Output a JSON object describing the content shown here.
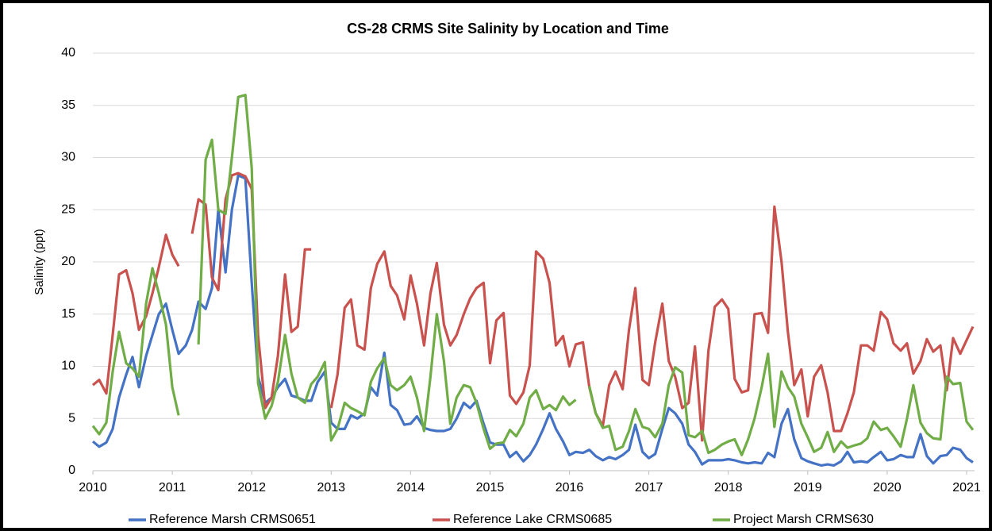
{
  "chart_data": {
    "type": "line",
    "title": "CS-28 CRMS Site Salinity by Location and Time",
    "y_label": "Salinity (ppt)",
    "x": [
      2010,
      2010.08,
      2010.17,
      2010.25,
      2010.33,
      2010.42,
      2010.5,
      2010.58,
      2010.67,
      2010.75,
      2010.83,
      2010.92,
      2011,
      2011.08,
      2011.17,
      2011.25,
      2011.33,
      2011.42,
      2011.5,
      2011.58,
      2011.67,
      2011.75,
      2011.83,
      2011.92,
      2012,
      2012.08,
      2012.17,
      2012.25,
      2012.33,
      2012.42,
      2012.5,
      2012.58,
      2012.67,
      2012.75,
      2012.83,
      2012.92,
      2013,
      2013.08,
      2013.17,
      2013.25,
      2013.33,
      2013.42,
      2013.5,
      2013.58,
      2013.67,
      2013.75,
      2013.83,
      2013.92,
      2014,
      2014.08,
      2014.17,
      2014.25,
      2014.33,
      2014.42,
      2014.5,
      2014.58,
      2014.67,
      2014.75,
      2014.83,
      2014.92,
      2015,
      2015.08,
      2015.17,
      2015.25,
      2015.33,
      2015.42,
      2015.5,
      2015.58,
      2015.67,
      2015.75,
      2015.83,
      2015.92,
      2016,
      2016.08,
      2016.17,
      2016.25,
      2016.33,
      2016.42,
      2016.5,
      2016.58,
      2016.67,
      2016.75,
      2016.83,
      2016.92,
      2017,
      2017.08,
      2017.17,
      2017.25,
      2017.33,
      2017.42,
      2017.5,
      2017.58,
      2017.67,
      2017.75,
      2017.83,
      2017.92,
      2018,
      2018.08,
      2018.17,
      2018.25,
      2018.33,
      2018.42,
      2018.5,
      2018.58,
      2018.67,
      2018.75,
      2018.83,
      2018.92,
      2019,
      2019.08,
      2019.17,
      2019.25,
      2019.33,
      2019.42,
      2019.5,
      2019.58,
      2019.67,
      2019.75,
      2019.83,
      2019.92,
      2020,
      2020.08,
      2020.17,
      2020.25,
      2020.33,
      2020.42,
      2020.5,
      2020.58,
      2020.67,
      2020.75,
      2020.83,
      2020.92,
      2021,
      2021.08
    ],
    "series": [
      {
        "name": "Reference Marsh CRMS0651",
        "color": "#4472c4",
        "values": [
          2.8,
          2.3,
          2.7,
          4,
          7,
          9.2,
          10.9,
          8,
          11,
          13,
          15,
          16,
          13.5,
          11.2,
          12,
          13.5,
          16.2,
          15.5,
          17.5,
          25,
          19,
          25,
          28.3,
          28,
          18,
          9,
          6.5,
          7,
          8,
          8.8,
          7.2,
          7,
          6.7,
          6.7,
          8.5,
          9.5,
          4.6,
          4,
          4,
          5.3,
          5,
          5.5,
          8,
          7.2,
          11.3,
          6.3,
          5.8,
          4.4,
          4.5,
          5.2,
          4.1,
          3.9,
          3.8,
          3.8,
          4,
          5,
          6.5,
          6,
          6.7,
          4.5,
          2.7,
          2.5,
          2.5,
          1.3,
          1.8,
          0.9,
          1.5,
          2.5,
          4,
          5.5,
          4,
          2.8,
          1.5,
          1.8,
          1.7,
          2,
          1.4,
          1,
          1.3,
          1.1,
          1.5,
          2,
          4.4,
          1.8,
          1.2,
          1.6,
          4,
          6,
          5.5,
          4.5,
          2.5,
          1.8,
          0.6,
          1,
          1,
          1,
          1.1,
          1,
          0.8,
          0.7,
          0.8,
          0.7,
          1.7,
          1.3,
          4.5,
          5.9,
          3,
          1.2,
          0.9,
          0.7,
          0.5,
          0.6,
          0.5,
          0.9,
          1.8,
          0.8,
          0.9,
          0.8,
          1.3,
          1.8,
          1,
          1.1,
          1.5,
          1.3,
          1.3,
          3.5,
          1.4,
          0.7,
          1.4,
          1.5,
          2.2,
          2,
          1.2,
          0.8
        ]
      },
      {
        "name": "Reference Lake CRMS0685",
        "color": "#c9524e",
        "values": [
          8.2,
          8.7,
          7.4,
          13,
          18.8,
          19.2,
          17,
          13.5,
          14.8,
          17,
          19.5,
          22.6,
          20.7,
          19.6,
          null,
          22.7,
          26,
          25.5,
          18.5,
          17.3,
          26,
          28.3,
          28.5,
          28.2,
          27,
          13,
          6,
          7,
          11,
          18.8,
          13.3,
          13.8,
          21.2,
          21.2,
          null,
          null,
          6,
          9.2,
          15.6,
          16.4,
          12,
          11.6,
          17.5,
          19.8,
          21,
          17.7,
          16.8,
          14.5,
          18.7,
          16,
          12,
          17,
          19.9,
          14,
          12,
          13,
          15,
          16.5,
          17.5,
          18,
          10.3,
          14.4,
          15.1,
          7.2,
          6.4,
          7.5,
          10.1,
          21,
          20.3,
          18,
          12,
          12.9,
          10,
          12.1,
          12.3,
          8,
          5.5,
          4.3,
          8.2,
          9.5,
          7.8,
          13.5,
          17.5,
          8.7,
          8.2,
          12.3,
          16,
          10.5,
          9,
          6,
          6.5,
          11.9,
          2.9,
          11.5,
          15.7,
          16.4,
          15.5,
          8.8,
          7.5,
          7.7,
          15,
          15.1,
          13.2,
          25.3,
          20,
          13.3,
          8.2,
          9.7,
          5.2,
          9,
          10.1,
          7.5,
          3.8,
          3.8,
          5.5,
          7.5,
          12,
          12,
          11.5,
          15.2,
          14.5,
          12.2,
          11.5,
          12.2,
          9.3,
          10.5,
          12.6,
          11.4,
          12,
          7.7,
          12.7,
          11.2,
          12.5,
          13.8
        ]
      },
      {
        "name": "Project Marsh CRMS630",
        "color": "#70ad47",
        "values": [
          4.3,
          3.5,
          4.6,
          9.5,
          13.3,
          10.3,
          9.8,
          9,
          16,
          19.4,
          17,
          14,
          8,
          5.3,
          null,
          null,
          12.1,
          29.8,
          31.7,
          25,
          24.6,
          30,
          35.8,
          36,
          29,
          8.4,
          5,
          6.2,
          8.5,
          13,
          9.3,
          7,
          6.5,
          8.3,
          9,
          10.4,
          2.9,
          4,
          6.5,
          6,
          5.7,
          5.3,
          8.5,
          9.8,
          10.8,
          8.2,
          7.7,
          8.2,
          9,
          7,
          3.8,
          9,
          15,
          10.5,
          4.5,
          7,
          8.2,
          8,
          6.5,
          4,
          2.1,
          2.6,
          2.7,
          3.9,
          3.3,
          4.5,
          7,
          7.7,
          5.9,
          6.3,
          5.8,
          7.1,
          6.3,
          6.8,
          null,
          8.1,
          5.5,
          4.1,
          4.3,
          2,
          2.3,
          3.8,
          5.9,
          4.2,
          4,
          3.2,
          4.5,
          8.2,
          9.9,
          9.4,
          3.4,
          3.2,
          3.8,
          1.7,
          2,
          2.5,
          2.8,
          3,
          1.5,
          3,
          5,
          8,
          11.2,
          4.2,
          9.5,
          8,
          7.1,
          4.5,
          3.2,
          1.8,
          2.2,
          3.7,
          1.8,
          2.8,
          2.2,
          2.4,
          2.6,
          3.1,
          4.7,
          3.9,
          4.1,
          3.3,
          2.3,
          5,
          8.2,
          4.6,
          3.6,
          3.1,
          3,
          9,
          8.3,
          8.4,
          4.7,
          3.9
        ]
      }
    ],
    "xlim": [
      2010,
      2021.1
    ],
    "xticks": [
      2010,
      2011,
      2012,
      2013,
      2014,
      2015,
      2016,
      2017,
      2018,
      2019,
      2020,
      2021
    ],
    "ylim": [
      0,
      40
    ],
    "yticks": [
      0,
      5,
      10,
      15,
      20,
      25,
      30,
      35,
      40
    ],
    "grid": true,
    "legend": "bottom"
  }
}
